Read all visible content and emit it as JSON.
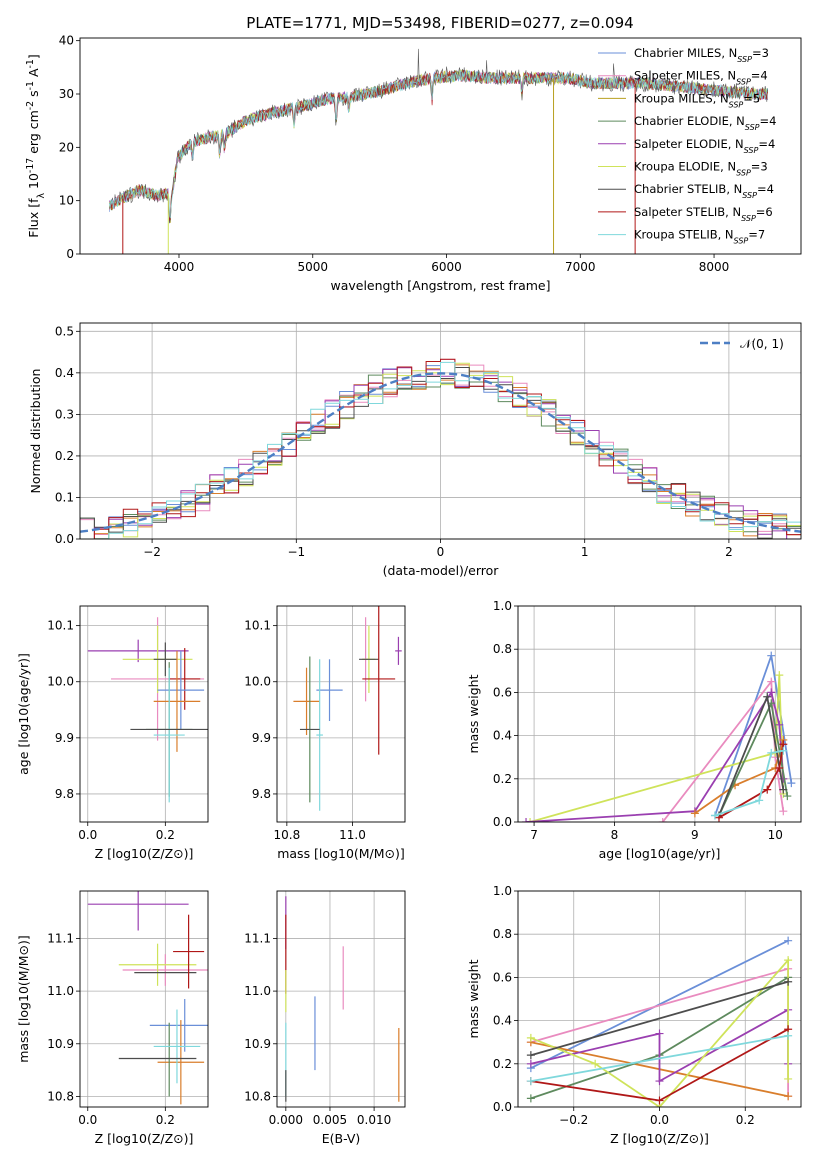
{
  "figure_title": "PLATE=1771, MJD=53498, FIBERID=0277, z=0.094",
  "colors": {
    "c1": "#6a8fd8",
    "c2": "#e98bbf",
    "c3": "#d97e2c",
    "c4": "#5e8a5e",
    "c5": "#9a3fb0",
    "c6": "#cfe35a",
    "c7": "#4d4d4d",
    "c8": "#b01818",
    "c9": "#7fd8dc"
  },
  "chart_data": [
    {
      "id": "spectrum",
      "type": "line",
      "xlabel": "wavelength [Angstrom, rest frame]",
      "ylabel": "Flux [f_λ 10^-17 erg cm^-2 s^-1 A^-1]",
      "xlim": [
        3260,
        8650
      ],
      "ylim": [
        0,
        40.5
      ],
      "xticks": [
        4000,
        5000,
        6000,
        7000,
        8000
      ],
      "yticks": [
        0,
        10,
        20,
        30,
        40
      ],
      "legend_position": "upper-right",
      "grid": false,
      "series": [
        {
          "name": "Chabrier MILES, N_SSP=3",
          "color": "#6a8fd8"
        },
        {
          "name": "Salpeter MILES, N_SSP=4",
          "color": "#e98bbf"
        },
        {
          "name": "Kroupa MILES, N_SSP=5",
          "color": "#b8a020"
        },
        {
          "name": "Chabrier ELODIE, N_SSP=4",
          "color": "#5e8a5e"
        },
        {
          "name": "Salpeter ELODIE, N_SSP=4",
          "color": "#9a3fb0"
        },
        {
          "name": "Kroupa ELODIE, N_SSP=3",
          "color": "#cfe35a"
        },
        {
          "name": "Chabrier STELIB, N_SSP=4",
          "color": "#4d4d4d"
        },
        {
          "name": "Salpeter STELIB, N_SSP=6",
          "color": "#b01818"
        },
        {
          "name": "Kroupa STELIB, N_SSP=7",
          "color": "#7fd8dc"
        }
      ],
      "continuum": [
        [
          3480,
          9
        ],
        [
          3550,
          10
        ],
        [
          3700,
          12
        ],
        [
          3850,
          11
        ],
        [
          3950,
          11.5
        ],
        [
          3990,
          18
        ],
        [
          4100,
          21
        ],
        [
          4250,
          22
        ],
        [
          4350,
          22.5
        ],
        [
          4500,
          25
        ],
        [
          4700,
          26.5
        ],
        [
          4900,
          27.5
        ],
        [
          5100,
          29
        ],
        [
          5300,
          29.5
        ],
        [
          5500,
          30.5
        ],
        [
          5700,
          32
        ],
        [
          5900,
          33
        ],
        [
          6100,
          33.5
        ],
        [
          6300,
          33
        ],
        [
          6500,
          33
        ],
        [
          6700,
          33
        ],
        [
          6900,
          33
        ],
        [
          7100,
          32
        ],
        [
          7300,
          32
        ],
        [
          7500,
          32
        ],
        [
          7700,
          31.5
        ],
        [
          7900,
          31
        ],
        [
          8100,
          30.5
        ],
        [
          8300,
          30
        ],
        [
          8400,
          30
        ]
      ],
      "dips": [
        [
          3933,
          6
        ],
        [
          4101,
          3
        ],
        [
          4304,
          4
        ],
        [
          4340,
          3
        ],
        [
          4861,
          3
        ],
        [
          5175,
          5
        ],
        [
          5270,
          3
        ],
        [
          5892,
          4
        ],
        [
          6563,
          3
        ]
      ],
      "spikes": [
        [
          5790,
          6
        ],
        [
          6000,
          3
        ],
        [
          6300,
          3
        ],
        [
          7250,
          3
        ]
      ],
      "drops": [
        [
          3580,
          0
        ],
        [
          3920,
          0
        ],
        [
          6800,
          0
        ],
        [
          7410,
          0
        ]
      ]
    },
    {
      "id": "residuals",
      "type": "histogram",
      "xlabel": "(data-model)/error",
      "ylabel": "Normed distribution",
      "xlim": [
        -2.5,
        2.5
      ],
      "ylim": [
        0,
        0.52
      ],
      "xticks": [
        -2,
        -1,
        0,
        1,
        2
      ],
      "yticks": [
        0.0,
        0.1,
        0.2,
        0.3,
        0.4,
        0.5
      ],
      "grid": true,
      "legend_position": "upper-right",
      "reference_curve": {
        "name": "𝒩(0, 1)",
        "color": "#4d7fc4"
      },
      "bin_edges_start": -2.5,
      "bin_width": 0.1,
      "n_bins": 50
    },
    {
      "id": "age-vs-Z",
      "type": "scatter",
      "xlabel": "Z [log10(Z/Z⊙)]",
      "ylabel": "age  [log10(age/yr)]",
      "xlim": [
        -0.02,
        0.31
      ],
      "ylim": [
        9.75,
        10.135
      ],
      "xticks": [
        0.0,
        0.2
      ],
      "yticks": [
        9.8,
        9.9,
        10.0,
        10.1
      ],
      "grid": true,
      "points": [
        {
          "c": "c5",
          "x": 0.13,
          "xe": 0.13,
          "y": 10.055,
          "ye": 0.02
        },
        {
          "c": "c2",
          "x": 0.18,
          "xe": 0.12,
          "y": 10.005,
          "ye": 0.11
        },
        {
          "c": "c6",
          "x": 0.18,
          "xe": 0.09,
          "y": 10.04,
          "ye": 0.06
        },
        {
          "c": "c7",
          "x": 0.2,
          "xe": 0.03,
          "y": 10.04,
          "ye": 0.03
        },
        {
          "c": "c8",
          "x": 0.25,
          "xe": 0.04,
          "y": 10.005,
          "ye": 0.055
        },
        {
          "c": "c1",
          "x": 0.24,
          "xe": 0.06,
          "y": 9.985,
          "ye": 0.07
        },
        {
          "c": "c3",
          "x": 0.23,
          "xe": 0.06,
          "y": 9.965,
          "ye": 0.09
        },
        {
          "c": "c4",
          "x": 0.21,
          "xe": 0.06,
          "y": 9.915,
          "ye": 0.12
        },
        {
          "c": "c9",
          "x": 0.21,
          "xe": 0.04,
          "y": 9.905,
          "ye": 0.12
        },
        {
          "c": "c7",
          "x": 0.21,
          "xe": 0.1,
          "y": 9.915,
          "ye": 0.0
        }
      ]
    },
    {
      "id": "age-vs-mass",
      "type": "scatter",
      "xlabel": "mass [log10(M/M⊙)]",
      "ylabel": "",
      "xlim": [
        10.77,
        11.16
      ],
      "ylim": [
        9.75,
        10.135
      ],
      "xticks": [
        10.8,
        11.0
      ],
      "yticks": [
        9.8,
        9.9,
        10.0,
        10.1
      ],
      "grid": true,
      "points": [
        {
          "c": "c5",
          "x": 11.14,
          "xe": 0.01,
          "y": 10.055,
          "ye": 0.025
        },
        {
          "c": "c2",
          "x": 11.04,
          "xe": 0.01,
          "y": 10.04,
          "ye": 0.075
        },
        {
          "c": "c6",
          "x": 11.05,
          "xe": 0.02,
          "y": 10.04,
          "ye": 0.06
        },
        {
          "c": "c7",
          "x": 11.05,
          "xe": 0.03,
          "y": 10.04,
          "ye": 0.0
        },
        {
          "c": "c8",
          "x": 11.08,
          "xe": 0.05,
          "y": 10.005,
          "ye": 0.135
        },
        {
          "c": "c1",
          "x": 10.93,
          "xe": 0.04,
          "y": 9.985,
          "ye": 0.055
        },
        {
          "c": "c3",
          "x": 10.86,
          "xe": 0.04,
          "y": 9.965,
          "ye": 0.06
        },
        {
          "c": "c4",
          "x": 10.87,
          "xe": 0.0,
          "y": 9.915,
          "ye": 0.13
        },
        {
          "c": "c9",
          "x": 10.9,
          "xe": 0.01,
          "y": 9.905,
          "ye": 0.135
        },
        {
          "c": "c7",
          "x": 10.87,
          "xe": 0.03,
          "y": 9.915,
          "ye": 0.0
        }
      ]
    },
    {
      "id": "weight-vs-age",
      "type": "line",
      "xlabel": "age  [log10(age/yr)]",
      "ylabel": "mass weight",
      "xlim": [
        6.8,
        10.32
      ],
      "ylim": [
        0,
        1.0
      ],
      "xticks": [
        7,
        8,
        9,
        10
      ],
      "yticks": [
        0.0,
        0.2,
        0.4,
        0.6,
        0.8,
        1.0
      ],
      "grid": true,
      "series": [
        {
          "c": "c1",
          "pts": [
            [
              9.25,
              0.03
            ],
            [
              9.95,
              0.77
            ],
            [
              10.2,
              0.18
            ]
          ]
        },
        {
          "c": "c2",
          "pts": [
            [
              8.6,
              0.0
            ],
            [
              9.95,
              0.65
            ],
            [
              10.0,
              0.3
            ],
            [
              10.1,
              0.05
            ]
          ]
        },
        {
          "c": "c6",
          "pts": [
            [
              6.95,
              0.0
            ],
            [
              10.0,
              0.32
            ],
            [
              10.05,
              0.68
            ],
            [
              10.1,
              0.13
            ]
          ]
        },
        {
          "c": "c5",
          "pts": [
            [
              6.9,
              0.0
            ],
            [
              9.0,
              0.05
            ],
            [
              9.95,
              0.6
            ],
            [
              10.05,
              0.45
            ],
            [
              10.1,
              0.2
            ]
          ]
        },
        {
          "c": "c3",
          "pts": [
            [
              9.0,
              0.04
            ],
            [
              9.5,
              0.17
            ],
            [
              10.0,
              0.25
            ],
            [
              10.1,
              0.38
            ]
          ]
        },
        {
          "c": "c4",
          "pts": [
            [
              9.3,
              0.03
            ],
            [
              9.95,
              0.55
            ],
            [
              10.15,
              0.12
            ]
          ]
        },
        {
          "c": "c7",
          "pts": [
            [
              9.3,
              0.03
            ],
            [
              9.9,
              0.58
            ],
            [
              10.1,
              0.15
            ]
          ]
        },
        {
          "c": "c8",
          "pts": [
            [
              9.3,
              0.02
            ],
            [
              9.9,
              0.15
            ],
            [
              10.05,
              0.25
            ],
            [
              10.1,
              0.36
            ]
          ]
        },
        {
          "c": "c9",
          "pts": [
            [
              9.25,
              0.03
            ],
            [
              9.8,
              0.1
            ],
            [
              9.95,
              0.32
            ],
            [
              10.1,
              0.33
            ]
          ]
        }
      ]
    },
    {
      "id": "mass-vs-Z",
      "type": "scatter",
      "xlabel": "Z [log10(Z/Z⊙)]",
      "ylabel": "mass [log10(M/M⊙)]",
      "xlim": [
        -0.02,
        0.31
      ],
      "ylim": [
        10.78,
        11.19
      ],
      "xticks": [
        0.0,
        0.2
      ],
      "yticks": [
        10.8,
        10.9,
        11.0,
        11.1
      ],
      "grid": true,
      "points": [
        {
          "c": "c5",
          "x": 0.13,
          "xe": 0.13,
          "y": 11.165,
          "ye": 0.05
        },
        {
          "c": "c2",
          "x": 0.2,
          "xe": 0.11,
          "y": 11.04,
          "ye": 0.03
        },
        {
          "c": "c6",
          "x": 0.18,
          "xe": 0.1,
          "y": 11.05,
          "ye": 0.04
        },
        {
          "c": "c7",
          "x": 0.2,
          "xe": 0.08,
          "y": 11.035,
          "ye": 0.0
        },
        {
          "c": "c8",
          "x": 0.26,
          "xe": 0.04,
          "y": 11.075,
          "ye": 0.07
        },
        {
          "c": "c1",
          "x": 0.25,
          "xe": 0.09,
          "y": 10.935,
          "ye": 0.05
        },
        {
          "c": "c3",
          "x": 0.24,
          "xe": 0.06,
          "y": 10.865,
          "ye": 0.08
        },
        {
          "c": "c4",
          "x": 0.21,
          "xe": 0.0,
          "y": 10.87,
          "ye": 0.07
        },
        {
          "c": "c9",
          "x": 0.23,
          "xe": 0.06,
          "y": 10.895,
          "ye": 0.07
        },
        {
          "c": "c7",
          "x": 0.18,
          "xe": 0.1,
          "y": 10.872,
          "ye": 0.0
        }
      ]
    },
    {
      "id": "mass-vs-EBV",
      "type": "scatter",
      "xlabel": "E(B-V)",
      "ylabel": "",
      "xlim": [
        -0.001,
        0.0135
      ],
      "ylim": [
        10.78,
        11.19
      ],
      "xticks": [
        0.0,
        0.005,
        0.01
      ],
      "yticks": [
        10.8,
        10.9,
        11.0,
        11.1
      ],
      "grid": true,
      "points": [
        {
          "c": "c5",
          "x": 0.0,
          "xe": 0.0,
          "y": 11.13,
          "ye": 0.05
        },
        {
          "c": "c8",
          "x": 0.0,
          "xe": 0.0,
          "y": 11.07,
          "ye": 0.075
        },
        {
          "c": "c6",
          "x": 0.0,
          "xe": 0.0,
          "y": 11.0,
          "ye": 0.04
        },
        {
          "c": "c9",
          "x": 0.0,
          "xe": 0.0,
          "y": 10.87,
          "ye": 0.07
        },
        {
          "c": "c7",
          "x": 0.0,
          "xe": 0.0,
          "y": 10.82,
          "ye": 0.03
        },
        {
          "c": "c1",
          "x": 0.0033,
          "xe": 0.0,
          "y": 10.92,
          "ye": 0.07
        },
        {
          "c": "c2",
          "x": 0.0065,
          "xe": 0.0,
          "y": 11.025,
          "ye": 0.06
        },
        {
          "c": "c3",
          "x": 0.0128,
          "xe": 0.0,
          "y": 10.86,
          "ye": 0.07
        }
      ]
    },
    {
      "id": "weight-vs-Z",
      "type": "line",
      "xlabel": "Z [log10(Z/Z⊙)]",
      "ylabel": "mass weight",
      "xlim": [
        -0.33,
        0.33
      ],
      "ylim": [
        0,
        1.0
      ],
      "xticks": [
        -0.2,
        0.0,
        0.2
      ],
      "yticks": [
        0.0,
        0.2,
        0.4,
        0.6,
        0.8,
        1.0
      ],
      "grid": true,
      "series": [
        {
          "c": "c1",
          "pts": [
            [
              -0.3,
              0.18
            ],
            [
              0.3,
              0.77
            ]
          ]
        },
        {
          "c": "c2",
          "pts": [
            [
              -0.3,
              0.3
            ],
            [
              0.3,
              0.64
            ],
            [
              0.3,
              0.05
            ]
          ]
        },
        {
          "c": "c3",
          "pts": [
            [
              -0.3,
              0.3
            ],
            [
              0.3,
              0.05
            ]
          ]
        },
        {
          "c": "c4",
          "pts": [
            [
              -0.3,
              0.04
            ],
            [
              0.0,
              0.24
            ],
            [
              0.3,
              0.6
            ]
          ]
        },
        {
          "c": "c5",
          "pts": [
            [
              -0.3,
              0.2
            ],
            [
              0.0,
              0.34
            ],
            [
              0.0,
              0.12
            ],
            [
              0.3,
              0.45
            ],
            [
              0.3,
              0.2
            ]
          ]
        },
        {
          "c": "c6",
          "pts": [
            [
              -0.3,
              0.32
            ],
            [
              -0.15,
              0.2
            ],
            [
              0.0,
              0.0
            ],
            [
              0.3,
              0.68
            ],
            [
              0.3,
              0.13
            ]
          ]
        },
        {
          "c": "c7",
          "pts": [
            [
              -0.3,
              0.24
            ],
            [
              0.3,
              0.58
            ]
          ]
        },
        {
          "c": "c8",
          "pts": [
            [
              -0.3,
              0.12
            ],
            [
              0.0,
              0.03
            ],
            [
              0.3,
              0.36
            ]
          ]
        },
        {
          "c": "c9",
          "pts": [
            [
              -0.3,
              0.12
            ],
            [
              0.3,
              0.33
            ]
          ]
        }
      ]
    }
  ]
}
